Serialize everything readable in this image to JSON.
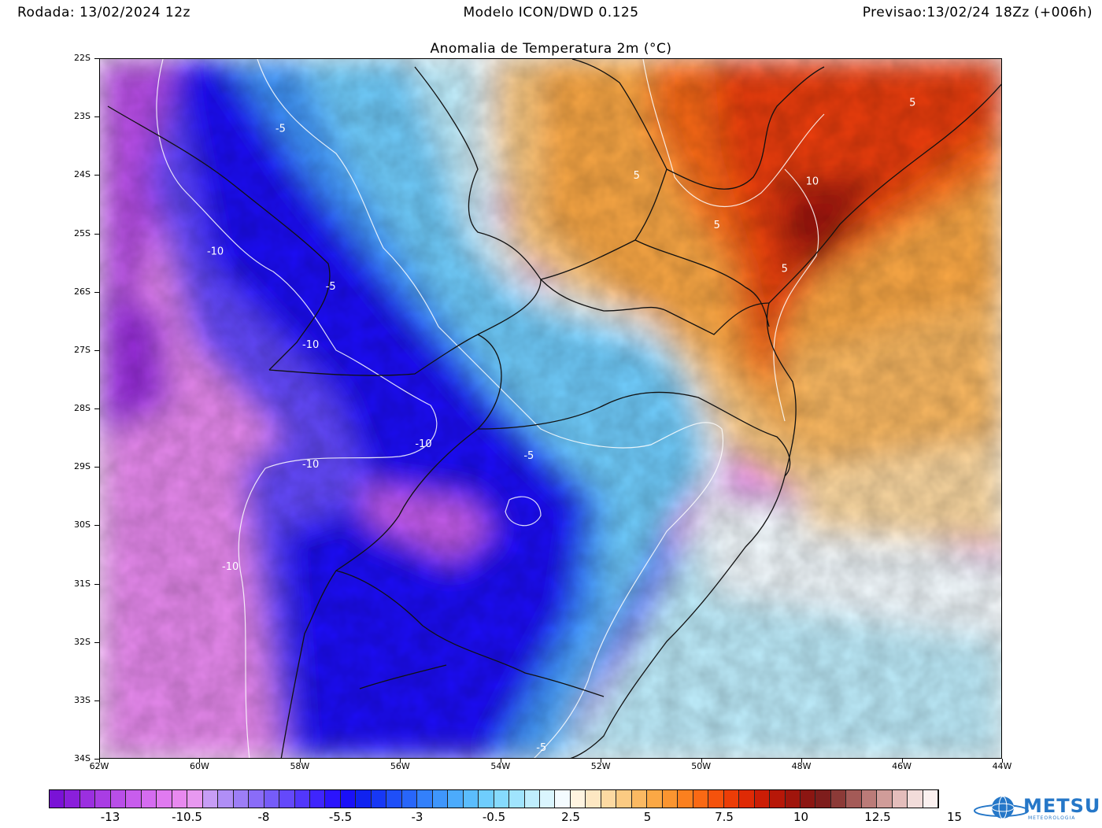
{
  "header": {
    "run": "Rodada: 13/02/2024 12z",
    "model": "Modelo ICON/DWD 0.125",
    "forecast": "Previsao:13/02/24 18Zz (+006h)"
  },
  "title": "Anomalia de Temperatura 2m (°C)",
  "map": {
    "lat_labels": [
      "22S",
      "23S",
      "24S",
      "25S",
      "26S",
      "27S",
      "28S",
      "29S",
      "30S",
      "31S",
      "32S",
      "33S",
      "34S"
    ],
    "lon_labels": [
      "62W",
      "60W",
      "58W",
      "56W",
      "54W",
      "52W",
      "50W",
      "48W",
      "46W",
      "44W"
    ],
    "contour_labels": [
      {
        "text": "-5",
        "lon": -58.4,
        "lat": -23.25
      },
      {
        "text": "-10",
        "lon": -59.7,
        "lat": -25.35
      },
      {
        "text": "-5",
        "lon": -57.4,
        "lat": -25.95
      },
      {
        "text": "-10",
        "lon": -57.8,
        "lat": -26.95
      },
      {
        "text": "-10",
        "lon": -55.55,
        "lat": -28.65
      },
      {
        "text": "-10",
        "lon": -57.8,
        "lat": -29.0
      },
      {
        "text": "-5",
        "lon": -53.45,
        "lat": -28.85
      },
      {
        "text": "-10",
        "lon": -59.4,
        "lat": -30.75
      },
      {
        "text": "-5",
        "lon": -53.2,
        "lat": -33.85
      },
      {
        "text": "5",
        "lon": -51.3,
        "lat": -24.05
      },
      {
        "text": "10",
        "lon": -47.8,
        "lat": -24.15
      },
      {
        "text": "5",
        "lon": -49.7,
        "lat": -24.9
      },
      {
        "text": "5",
        "lon": -48.35,
        "lat": -25.65
      },
      {
        "text": "5",
        "lon": -45.8,
        "lat": -22.8
      }
    ]
  },
  "colorbar": {
    "colors": [
      "#7a12d6",
      "#8a1fdb",
      "#9b2fe0",
      "#a93de4",
      "#b94ee8",
      "#c85ded",
      "#d56cf0",
      "#e07af0",
      "#e889ef",
      "#e898f0",
      "#c79df5",
      "#b08ef6",
      "#9d7ef6",
      "#8a6cf8",
      "#765cf9",
      "#6449fb",
      "#5237fc",
      "#3f25fd",
      "#2b14fd",
      "#1a10f8",
      "#1022f0",
      "#1738f5",
      "#1f4ff8",
      "#2866fa",
      "#3380fb",
      "#3f96fc",
      "#4cabfc",
      "#5bbdfd",
      "#6fcdfd",
      "#86dafd",
      "#a0e4fd",
      "#bfeefd",
      "#daf5fe",
      "#f4fbff",
      "#fff4e0",
      "#fde7c2",
      "#fcd9a2",
      "#fbca82",
      "#fbb962",
      "#fba845",
      "#fb9530",
      "#fb801f",
      "#fa6914",
      "#f5520c",
      "#ec3d07",
      "#df2a05",
      "#cc1d06",
      "#b71708",
      "#a0150c",
      "#8c1612",
      "#7e1d1c",
      "#8c3a37",
      "#a45a57",
      "#bb7b78",
      "#d09c99",
      "#e4bdbb",
      "#f2dcda",
      "#fbf0ef"
    ],
    "ticks": [
      "-13",
      "-10.5",
      "-8",
      "-5.5",
      "-3",
      "-0.5",
      "2.5",
      "5",
      "7.5",
      "10",
      "12.5",
      "15"
    ]
  },
  "logo": {
    "name": "METSUL",
    "subtitle": "METEOROLOGIA",
    "icon": "globe-icon",
    "accent": "#2577c8"
  }
}
